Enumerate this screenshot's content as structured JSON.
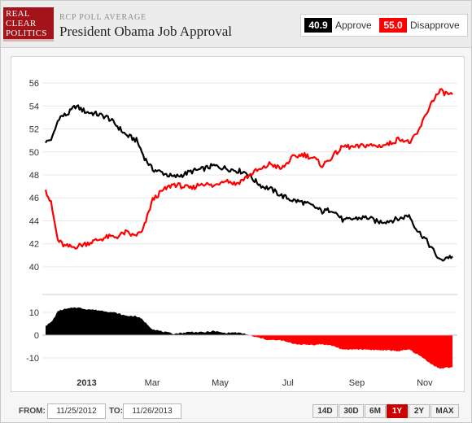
{
  "header": {
    "logo_lines": [
      "REAL",
      "CLEAR",
      "POLITICS"
    ],
    "subtitle": "RCP POLL AVERAGE",
    "title": "President Obama Job Approval"
  },
  "legend": {
    "approve_value": "40.9",
    "approve_label": "Approve",
    "disapprove_value": "55.0",
    "disapprove_label": "Disapprove"
  },
  "colors": {
    "approve": "#000000",
    "disapprove": "#ff0000",
    "grid": "#e9e9e9",
    "active_range": "#cc0000"
  },
  "footer": {
    "from_label": "FROM:",
    "from_value": "11/25/2012",
    "to_label": "TO:",
    "to_value": "11/26/2013",
    "ranges": [
      "14D",
      "30D",
      "6M",
      "1Y",
      "2Y",
      "MAX"
    ],
    "active_range": "1Y"
  },
  "chart_data": [
    {
      "type": "line",
      "title": "President Obama Job Approval",
      "x_type": "date",
      "x_range": [
        "2012-11-25",
        "2013-11-26"
      ],
      "x_ticks": [
        {
          "date": "2013-01-01",
          "label": "2013"
        },
        {
          "date": "2013-03-01",
          "label": "Mar"
        },
        {
          "date": "2013-05-01",
          "label": "May"
        },
        {
          "date": "2013-07-01",
          "label": "Jul"
        },
        {
          "date": "2013-09-01",
          "label": "Sep"
        },
        {
          "date": "2013-11-01",
          "label": "Nov"
        }
      ],
      "ylim": [
        39,
        57
      ],
      "yticks": [
        40,
        42,
        44,
        46,
        48,
        50,
        52,
        54,
        56
      ],
      "grid": true,
      "series": [
        {
          "name": "Approve",
          "color": "#000000",
          "points": [
            [
              "2012-11-25",
              50.8
            ],
            [
              "2012-12-01",
              51.2
            ],
            [
              "2012-12-07",
              53.0
            ],
            [
              "2012-12-15",
              53.3
            ],
            [
              "2012-12-22",
              54.0
            ],
            [
              "2012-12-31",
              53.5
            ],
            [
              "2013-01-10",
              53.3
            ],
            [
              "2013-01-20",
              53.0
            ],
            [
              "2013-01-28",
              52.3
            ],
            [
              "2013-02-05",
              51.5
            ],
            [
              "2013-02-15",
              51.0
            ],
            [
              "2013-02-22",
              49.5
            ],
            [
              "2013-03-01",
              48.5
            ],
            [
              "2013-03-10",
              48.2
            ],
            [
              "2013-03-20",
              47.8
            ],
            [
              "2013-03-28",
              48.0
            ],
            [
              "2013-04-05",
              48.3
            ],
            [
              "2013-04-15",
              48.5
            ],
            [
              "2013-04-25",
              48.8
            ],
            [
              "2013-05-05",
              48.6
            ],
            [
              "2013-05-15",
              48.4
            ],
            [
              "2013-05-25",
              48.2
            ],
            [
              "2013-06-01",
              47.5
            ],
            [
              "2013-06-08",
              47.0
            ],
            [
              "2013-06-15",
              46.8
            ],
            [
              "2013-06-25",
              46.2
            ],
            [
              "2013-07-05",
              45.8
            ],
            [
              "2013-07-15",
              45.6
            ],
            [
              "2013-07-25",
              45.2
            ],
            [
              "2013-08-01",
              44.8
            ],
            [
              "2013-08-10",
              45.0
            ],
            [
              "2013-08-20",
              44.0
            ],
            [
              "2013-08-30",
              44.2
            ],
            [
              "2013-09-10",
              44.3
            ],
            [
              "2013-09-20",
              43.9
            ],
            [
              "2013-09-30",
              44.0
            ],
            [
              "2013-10-10",
              44.2
            ],
            [
              "2013-10-18",
              44.5
            ],
            [
              "2013-10-25",
              43.2
            ],
            [
              "2013-11-01",
              42.5
            ],
            [
              "2013-11-08",
              41.5
            ],
            [
              "2013-11-15",
              40.5
            ],
            [
              "2013-11-20",
              40.8
            ],
            [
              "2013-11-26",
              40.9
            ]
          ]
        },
        {
          "name": "Disapprove",
          "color": "#ff0000",
          "points": [
            [
              "2012-11-25",
              46.7
            ],
            [
              "2012-11-30",
              45.5
            ],
            [
              "2012-12-06",
              42.3
            ],
            [
              "2012-12-12",
              41.8
            ],
            [
              "2012-12-20",
              41.7
            ],
            [
              "2012-12-31",
              42.0
            ],
            [
              "2013-01-10",
              42.3
            ],
            [
              "2013-01-20",
              42.6
            ],
            [
              "2013-01-28",
              42.6
            ],
            [
              "2013-02-05",
              43.0
            ],
            [
              "2013-02-12",
              42.7
            ],
            [
              "2013-02-20",
              43.0
            ],
            [
              "2013-02-25",
              44.5
            ],
            [
              "2013-03-01",
              45.8
            ],
            [
              "2013-03-10",
              46.6
            ],
            [
              "2013-03-20",
              47.2
            ],
            [
              "2013-03-28",
              47.0
            ],
            [
              "2013-04-05",
              46.8
            ],
            [
              "2013-04-15",
              47.3
            ],
            [
              "2013-04-25",
              47.0
            ],
            [
              "2013-05-05",
              47.6
            ],
            [
              "2013-05-15",
              47.2
            ],
            [
              "2013-05-25",
              47.8
            ],
            [
              "2013-06-01",
              48.3
            ],
            [
              "2013-06-08",
              48.5
            ],
            [
              "2013-06-15",
              49.0
            ],
            [
              "2013-06-25",
              48.5
            ],
            [
              "2013-07-05",
              49.5
            ],
            [
              "2013-07-15",
              49.8
            ],
            [
              "2013-07-25",
              49.4
            ],
            [
              "2013-08-01",
              48.8
            ],
            [
              "2013-08-10",
              49.6
            ],
            [
              "2013-08-20",
              50.5
            ],
            [
              "2013-08-30",
              50.4
            ],
            [
              "2013-09-10",
              50.6
            ],
            [
              "2013-09-20",
              50.5
            ],
            [
              "2013-09-30",
              50.7
            ],
            [
              "2013-10-10",
              51.2
            ],
            [
              "2013-10-18",
              50.8
            ],
            [
              "2013-10-25",
              51.5
            ],
            [
              "2013-11-01",
              53.0
            ],
            [
              "2013-11-08",
              54.5
            ],
            [
              "2013-11-15",
              55.3
            ],
            [
              "2013-11-20",
              55.1
            ],
            [
              "2013-11-26",
              55.0
            ]
          ]
        }
      ]
    },
    {
      "type": "area",
      "description": "Spread (Approve minus Disapprove); positive values filled in black, negative in red",
      "x_type": "date",
      "x_range": [
        "2012-11-25",
        "2013-11-26"
      ],
      "ylim": [
        -15,
        15
      ],
      "yticks": [
        -10,
        0,
        10
      ],
      "grid": true,
      "positive_color": "#000000",
      "negative_color": "#ff0000",
      "derived_from_series": [
        "Approve",
        "Disapprove"
      ]
    }
  ]
}
